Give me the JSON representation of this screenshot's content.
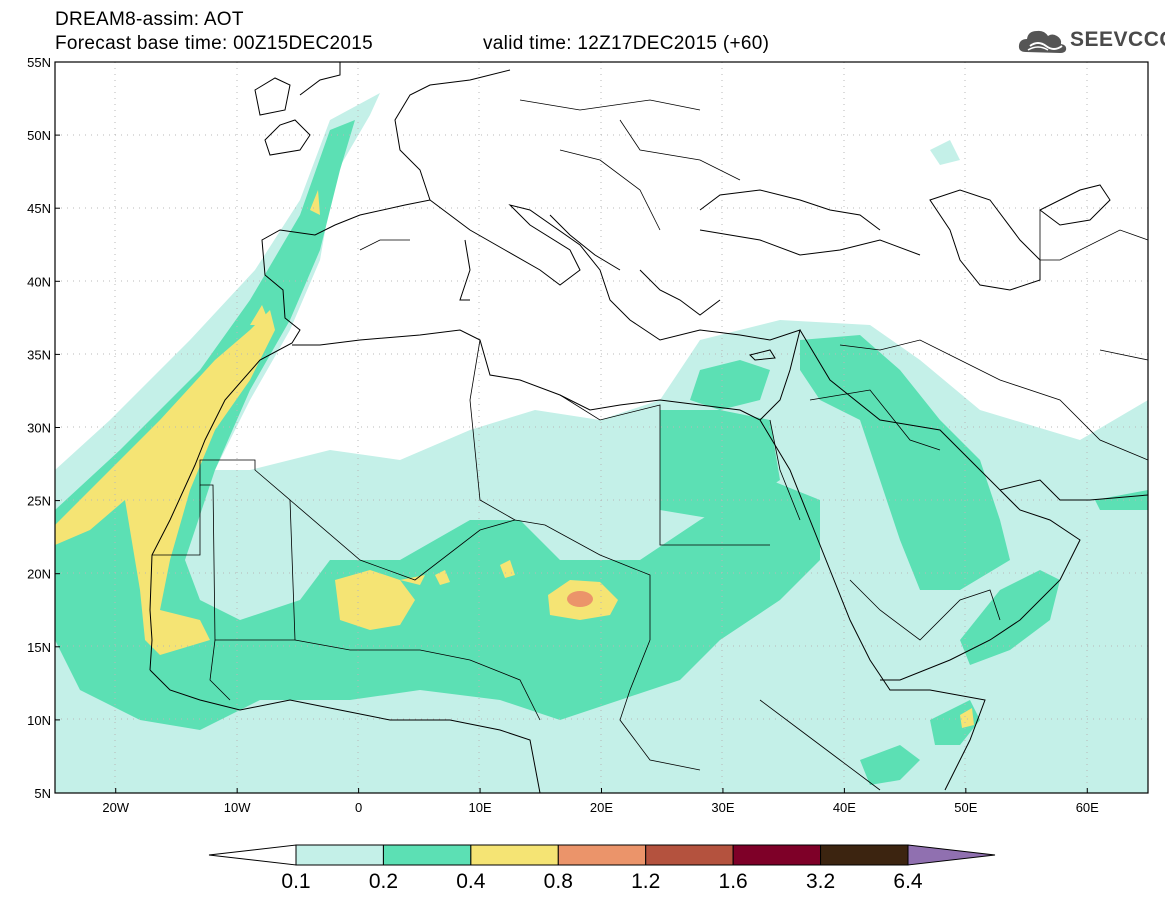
{
  "header": {
    "title": "DREAM8-assim: AOT",
    "base_time": "Forecast base time: 00Z15DEC2015",
    "valid_time": "valid time: 12Z17DEC2015 (+60)"
  },
  "logo": {
    "text": "SEEVCCC",
    "icon": "cloud-icon"
  },
  "map": {
    "lat_labels": [
      "55N",
      "50N",
      "45N",
      "40N",
      "35N",
      "30N",
      "25N",
      "20N",
      "15N",
      "10N",
      "5N"
    ],
    "lon_labels": [
      "20W",
      "10W",
      "0",
      "10E",
      "20E",
      "30E",
      "40E",
      "50E",
      "60E"
    ],
    "lat_range": [
      5,
      55
    ],
    "lon_range": [
      -25,
      65
    ],
    "grid": true
  },
  "colorbar": {
    "labels": [
      "0.1",
      "0.2",
      "0.4",
      "0.8",
      "1.2",
      "1.6",
      "3.2",
      "6.4"
    ],
    "colors": [
      "#c4f0e8",
      "#5ce0b4",
      "#f5e474",
      "#eb946a",
      "#b4523e",
      "#7e0028",
      "#3c2410",
      "#9070b0"
    ],
    "under_color": "#ffffff",
    "over_color": "#9070b0"
  }
}
